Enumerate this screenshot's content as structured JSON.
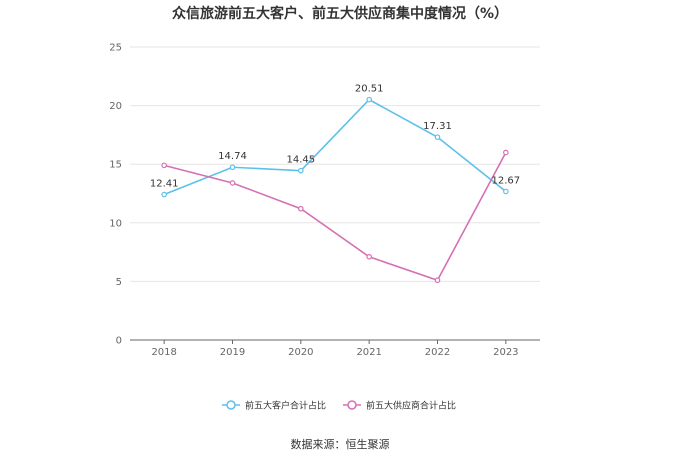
{
  "chart_data": {
    "type": "line",
    "title": "众信旅游前五大客户、前五大供应商集中度情况（%）",
    "xlabel": "",
    "ylabel": "",
    "categories": [
      "2018",
      "2019",
      "2020",
      "2021",
      "2022",
      "2023"
    ],
    "ylim": [
      0,
      25
    ],
    "yticks": [
      0,
      5,
      10,
      15,
      20,
      25
    ],
    "grid": true,
    "legend_position": "bottom",
    "series": [
      {
        "name": "前五大客户合计占比",
        "color": "#5bc0eb",
        "values": [
          12.41,
          14.74,
          14.45,
          20.51,
          17.31,
          12.67
        ],
        "labels": [
          "12.41",
          "14.74",
          "14.45",
          "20.51",
          "17.31",
          "12.67"
        ]
      },
      {
        "name": "前五大供应商合计占比",
        "color": "#d670b4",
        "values": [
          14.9,
          13.4,
          11.2,
          7.1,
          5.1,
          16.0
        ],
        "labels": []
      }
    ]
  },
  "source_text": "数据来源：恒生聚源"
}
